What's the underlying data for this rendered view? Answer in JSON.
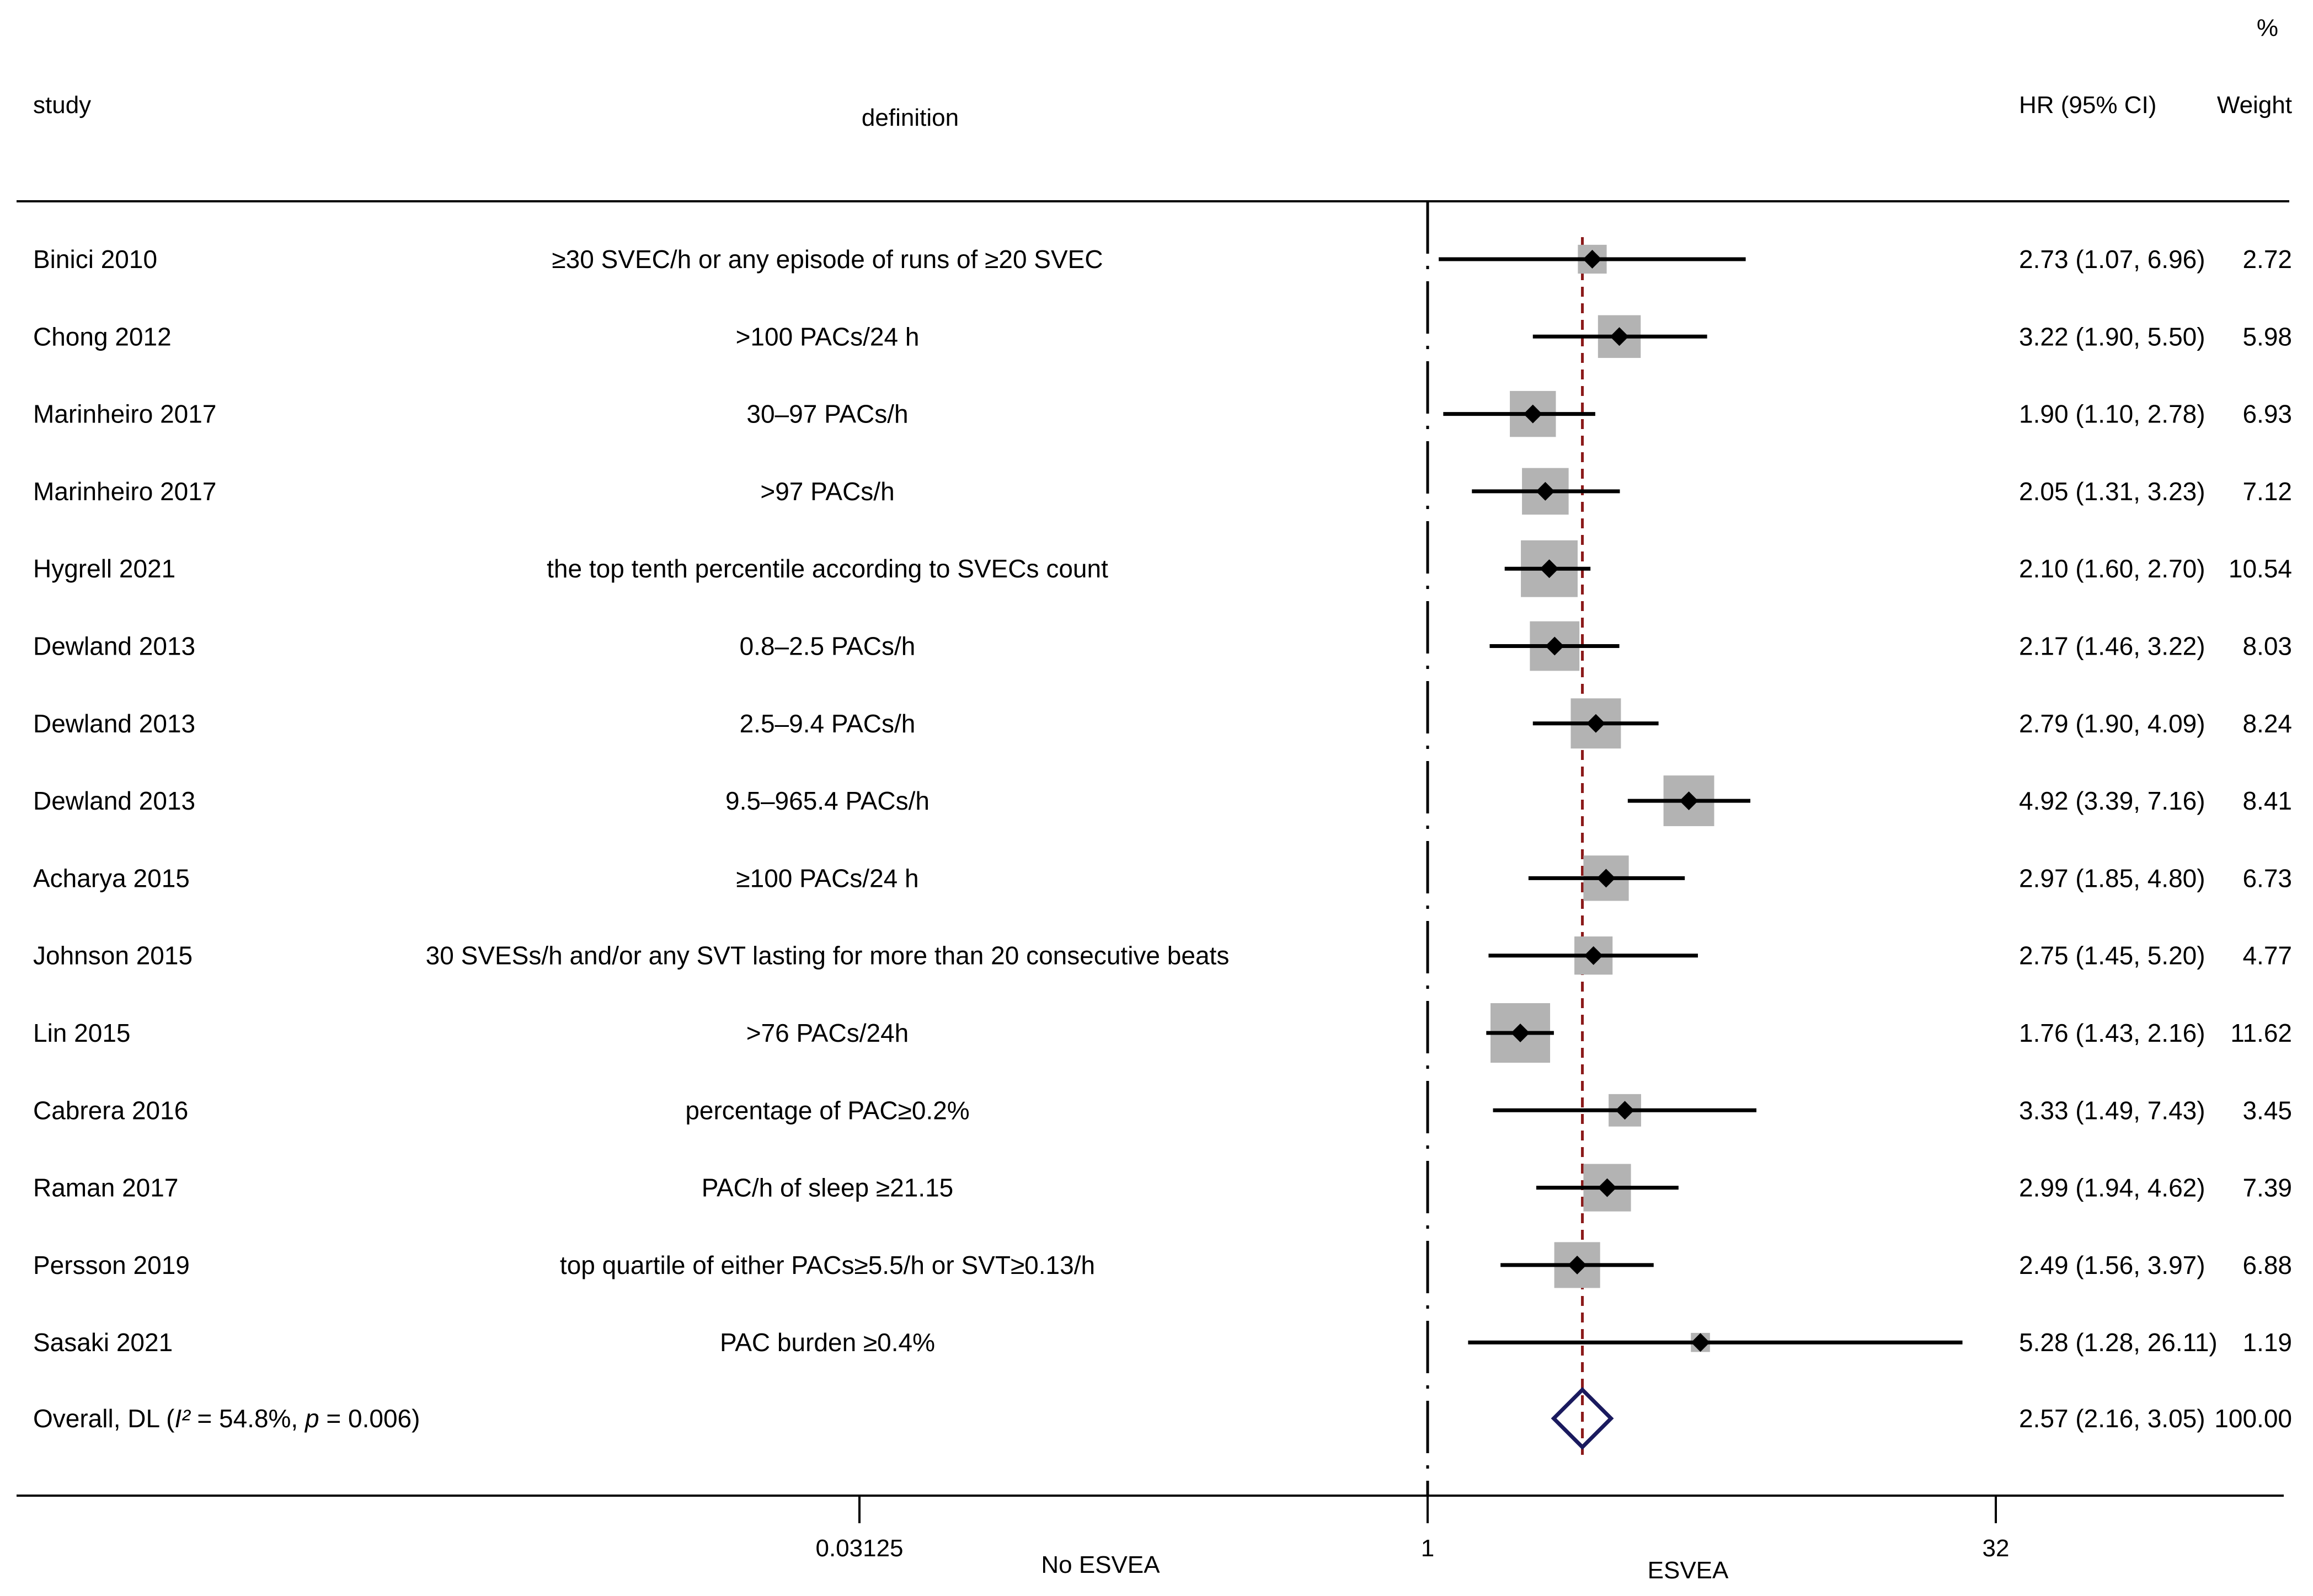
{
  "chart_data": {
    "type": "forest",
    "scale": "log2",
    "headers": {
      "study": "study",
      "definition": "definition",
      "estimate": "HR (95% CI)",
      "weight_percent": "%",
      "weight": "Weight"
    },
    "rows": [
      {
        "study": "Binici 2010",
        "definition": "≥30 SVEC/h or any episode of runs of ≥20 SVEC",
        "hr": 2.73,
        "lo": 1.07,
        "hi": 6.96,
        "hr_text": "2.73 (1.07, 6.96)",
        "weight": 2.72,
        "weight_text": "2.72"
      },
      {
        "study": "Chong 2012",
        "definition": ">100 PACs/24 h",
        "hr": 3.22,
        "lo": 1.9,
        "hi": 5.5,
        "hr_text": "3.22 (1.90, 5.50)",
        "weight": 5.98,
        "weight_text": "5.98"
      },
      {
        "study": "Marinheiro 2017",
        "definition": "30–97 PACs/h",
        "hr": 1.9,
        "lo": 1.1,
        "hi": 2.78,
        "hr_text": "1.90 (1.10, 2.78)",
        "weight": 6.93,
        "weight_text": "6.93"
      },
      {
        "study": "Marinheiro 2017",
        "definition": ">97 PACs/h",
        "hr": 2.05,
        "lo": 1.31,
        "hi": 3.23,
        "hr_text": "2.05 (1.31, 3.23)",
        "weight": 7.12,
        "weight_text": "7.12"
      },
      {
        "study": "Hygrell 2021",
        "definition": "the top tenth percentile according to SVECs count",
        "hr": 2.1,
        "lo": 1.6,
        "hi": 2.7,
        "hr_text": "2.10 (1.60, 2.70)",
        "weight": 10.54,
        "weight_text": "10.54"
      },
      {
        "study": "Dewland 2013",
        "definition": "0.8–2.5 PACs/h",
        "hr": 2.17,
        "lo": 1.46,
        "hi": 3.22,
        "hr_text": "2.17 (1.46, 3.22)",
        "weight": 8.03,
        "weight_text": "8.03"
      },
      {
        "study": "Dewland 2013",
        "definition": "2.5–9.4 PACs/h",
        "hr": 2.79,
        "lo": 1.9,
        "hi": 4.09,
        "hr_text": "2.79 (1.90, 4.09)",
        "weight": 8.24,
        "weight_text": "8.24"
      },
      {
        "study": "Dewland 2013",
        "definition": "9.5–965.4 PACs/h",
        "hr": 4.92,
        "lo": 3.39,
        "hi": 7.16,
        "hr_text": "4.92 (3.39, 7.16)",
        "weight": 8.41,
        "weight_text": "8.41"
      },
      {
        "study": "Acharya 2015",
        "definition": "≥100 PACs/24 h",
        "hr": 2.97,
        "lo": 1.85,
        "hi": 4.8,
        "hr_text": "2.97 (1.85, 4.80)",
        "weight": 6.73,
        "weight_text": "6.73"
      },
      {
        "study": "Johnson 2015",
        "definition": "30 SVESs/h and/or any SVT lasting for more than 20 consecutive beats",
        "hr": 2.75,
        "lo": 1.45,
        "hi": 5.2,
        "hr_text": "2.75 (1.45, 5.20)",
        "weight": 4.77,
        "weight_text": "4.77"
      },
      {
        "study": "Lin 2015",
        "definition": ">76 PACs/24h",
        "hr": 1.76,
        "lo": 1.43,
        "hi": 2.16,
        "hr_text": "1.76 (1.43, 2.16)",
        "weight": 11.62,
        "weight_text": "11.62"
      },
      {
        "study": "Cabrera 2016",
        "definition": "percentage of PAC≥0.2%",
        "hr": 3.33,
        "lo": 1.49,
        "hi": 7.43,
        "hr_text": "3.33 (1.49, 7.43)",
        "weight": 3.45,
        "weight_text": "3.45"
      },
      {
        "study": "Raman 2017",
        "definition": "PAC/h of sleep ≥21.15",
        "hr": 2.99,
        "lo": 1.94,
        "hi": 4.62,
        "hr_text": "2.99 (1.94, 4.62)",
        "weight": 7.39,
        "weight_text": "7.39"
      },
      {
        "study": "Persson 2019",
        "definition": "top quartile of either PACs≥5.5/h or SVT≥0.13/h",
        "hr": 2.49,
        "lo": 1.56,
        "hi": 3.97,
        "hr_text": "2.49 (1.56, 3.97)",
        "weight": 6.88,
        "weight_text": "6.88"
      },
      {
        "study": "Sasaki 2021",
        "definition": "PAC burden ≥0.4%",
        "hr": 5.28,
        "lo": 1.28,
        "hi": 26.11,
        "hr_text": "5.28 (1.28, 26.11)",
        "weight": 1.19,
        "weight_text": "1.19"
      }
    ],
    "overall": {
      "label_prefix": "Overall, DL (",
      "i2_symbol": "I²",
      "label_mid": " = 54.8%, ",
      "p_symbol": "p",
      "label_suffix": " = 0.006)",
      "hr": 2.57,
      "lo": 2.16,
      "hi": 3.05,
      "hr_text": "2.57 (2.16, 3.05)",
      "weight_text": "100.00"
    },
    "x_ticks": [
      {
        "value": 0.03125,
        "label": "0.03125"
      },
      {
        "value": 1,
        "label": "1"
      },
      {
        "value": 32,
        "label": "32"
      }
    ],
    "x_range": [
      0.001,
      100
    ],
    "null_value": 1,
    "direction_labels": {
      "left": "No ESVEA",
      "right": "ESVEA"
    },
    "colors": {
      "box": "#b3b3b3",
      "ci_line": "#000000",
      "point": "#000000",
      "overall_diamond": "#1a1a5e",
      "pooled_line": "#8b1a1a"
    }
  }
}
